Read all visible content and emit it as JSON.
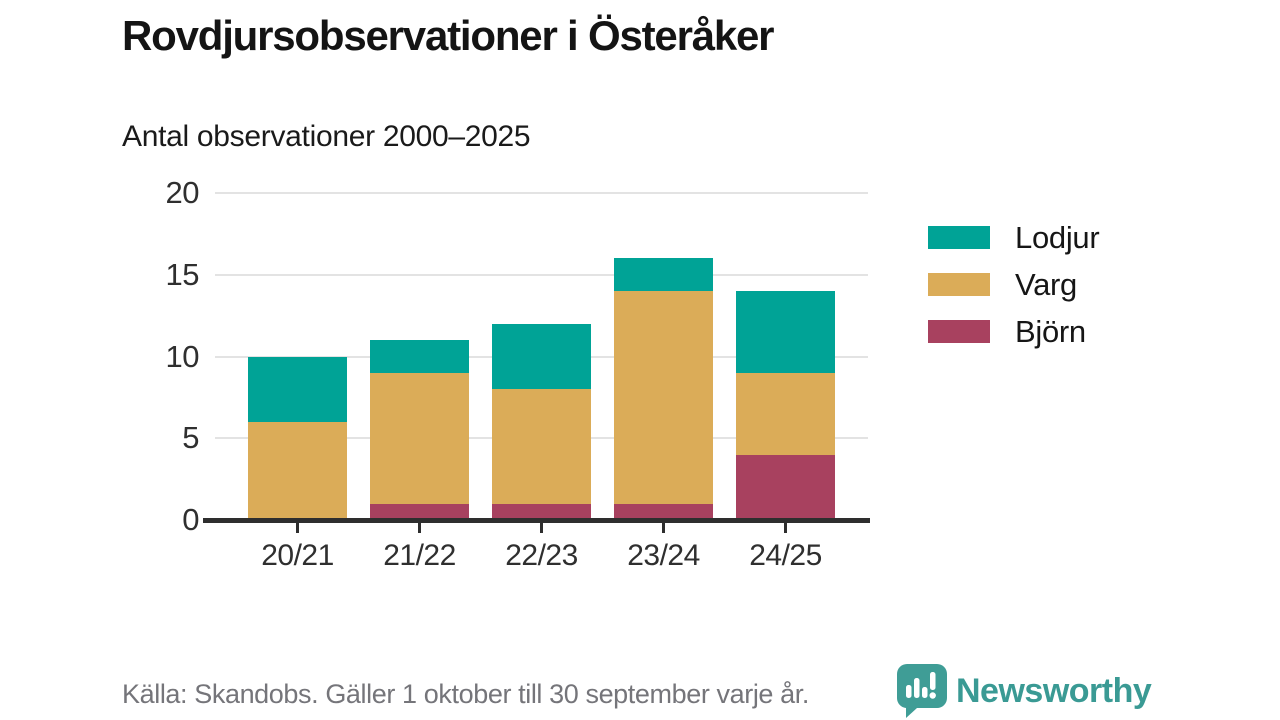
{
  "title": "Rovdjursobservationer i Österåker",
  "subtitle": "Antal observationer 2000–2025",
  "footer": {
    "source": "Källa: Skandobs. Gäller 1 oktober till 30 september varje år."
  },
  "logo": {
    "name": "Newsworthy",
    "icon": "bar-chart-speech-bubble-icon",
    "color": "#3a9a94",
    "icon_color": "#3f9d96"
  },
  "colors": {
    "background": "#ffffff",
    "title_text": "#141414",
    "axis_line": "#2e2e2e",
    "gridline": "#e3e3e3",
    "tick_label": "#2f2f2f",
    "footer_text": "#75757a",
    "lodjur": "#00a396",
    "varg": "#dbac58",
    "bjorn": "#a8415f"
  },
  "chart_data": {
    "type": "bar",
    "stacked": true,
    "title": "Rovdjursobservationer i Österåker",
    "subtitle": "Antal observationer 2000–2025",
    "categories": [
      "20/21",
      "21/22",
      "22/23",
      "23/24",
      "24/25"
    ],
    "series": [
      {
        "name": "Björn",
        "color": "#a8415f",
        "values": [
          0,
          1,
          1,
          1,
          4
        ]
      },
      {
        "name": "Varg",
        "color": "#dbac58",
        "values": [
          6,
          8,
          7,
          13,
          5
        ]
      },
      {
        "name": "Lodjur",
        "color": "#00a396",
        "values": [
          4,
          2,
          4,
          2,
          5
        ]
      }
    ],
    "totals": [
      10,
      11,
      12,
      16,
      14
    ],
    "stack_order_bottom_to_top": [
      "Björn",
      "Varg",
      "Lodjur"
    ],
    "legend_entries": [
      "Lodjur",
      "Varg",
      "Björn"
    ],
    "legend_position": "right",
    "xlabel": "",
    "ylabel": "",
    "ylim": [
      0,
      20
    ],
    "yticks": [
      0,
      5,
      10,
      15,
      20
    ],
    "grid": true
  }
}
